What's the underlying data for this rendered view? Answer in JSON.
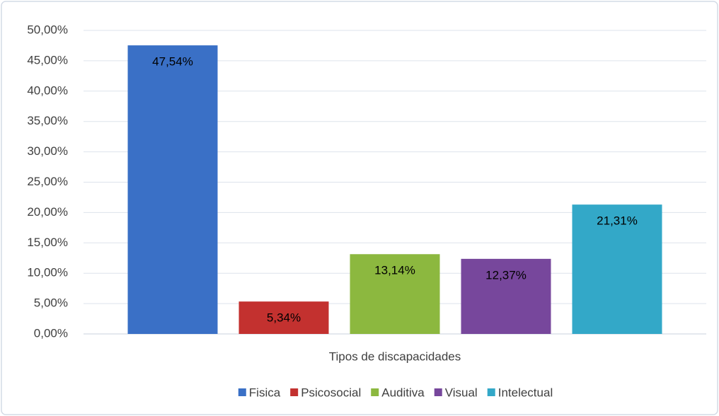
{
  "chart_data": {
    "type": "bar",
    "categories": [
      "Tipos de discapacidades"
    ],
    "series": [
      {
        "name": "Fisica",
        "color": "#3a70c6",
        "values": [
          47.54
        ],
        "value_labels": [
          "47,54%"
        ]
      },
      {
        "name": "Psicosocial",
        "color": "#c3312f",
        "values": [
          5.34
        ],
        "value_labels": [
          "5,34%"
        ]
      },
      {
        "name": "Auditiva",
        "color": "#8cb83f",
        "values": [
          13.14
        ],
        "value_labels": [
          "13,14%"
        ]
      },
      {
        "name": "Visual",
        "color": "#77479c",
        "values": [
          12.37
        ],
        "value_labels": [
          "12,37%"
        ]
      },
      {
        "name": "Intelectual",
        "color": "#33a8c8",
        "values": [
          21.31
        ],
        "value_labels": [
          "21,31%"
        ]
      }
    ],
    "ylim": [
      0,
      50
    ],
    "yticks": [
      {
        "value": 0,
        "label": "0,00%"
      },
      {
        "value": 5,
        "label": "5,00%"
      },
      {
        "value": 10,
        "label": "10,00%"
      },
      {
        "value": 15,
        "label": "15,00%"
      },
      {
        "value": 20,
        "label": "20,00%"
      },
      {
        "value": 25,
        "label": "25,00%"
      },
      {
        "value": 30,
        "label": "30,00%"
      },
      {
        "value": 35,
        "label": "35,00%"
      },
      {
        "value": 40,
        "label": "40,00%"
      },
      {
        "value": 45,
        "label": "45,00%"
      },
      {
        "value": 50,
        "label": "50,00%"
      }
    ],
    "grid": true,
    "legend": "bottom"
  }
}
